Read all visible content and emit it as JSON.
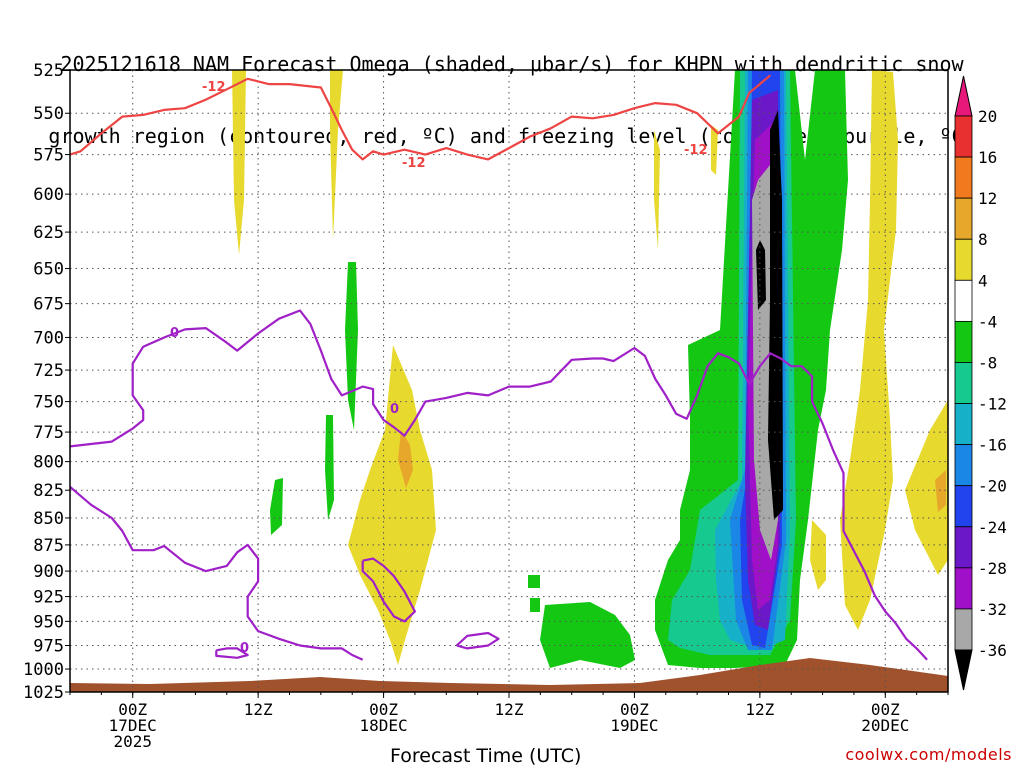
{
  "chart_data": {
    "type": "time-height cross section",
    "title_line1": "2025121618 NAM Forecast Omega (shaded, μbar/s) for KHPN with dendritic snow",
    "title_line2": "growth region (contoured, red, ºC) and freezing level (contoured, purple, ºC)",
    "xlabel": "Forecast Time (UTC)",
    "credit": "coolwx.com/models",
    "y_axis": {
      "scale": "pressure (log-like), inverted",
      "range_hPa": [
        1025,
        525
      ],
      "tick_labels": [
        "525",
        "550",
        "575",
        "600",
        "625",
        "650",
        "675",
        "700",
        "725",
        "750",
        "775",
        "800",
        "825",
        "850",
        "875",
        "900",
        "925",
        "950",
        "975",
        "1000",
        "1025"
      ],
      "grid": "dotted"
    },
    "x_axis": {
      "range_hours_from_init": [
        0,
        84
      ],
      "ticks": [
        {
          "hour": 6,
          "lines": [
            "00Z",
            "17DEC",
            "2025"
          ]
        },
        {
          "hour": 18,
          "lines": [
            "12Z"
          ]
        },
        {
          "hour": 30,
          "lines": [
            "00Z",
            "18DEC"
          ]
        },
        {
          "hour": 42,
          "lines": [
            "12Z"
          ]
        },
        {
          "hour": 54,
          "lines": [
            "00Z",
            "19DEC"
          ]
        },
        {
          "hour": 66,
          "lines": [
            "12Z"
          ]
        },
        {
          "hour": 78,
          "lines": [
            "00Z",
            "20DEC"
          ]
        }
      ],
      "grid": "dotted"
    },
    "colorbar": {
      "labels": [
        "20",
        "16",
        "12",
        "8",
        "4",
        "-4",
        "-8",
        "-12",
        "-16",
        "-20",
        "-24",
        "-28",
        "-32",
        "-36"
      ],
      "bins": [
        {
          "color": "#e8187a"
        },
        {
          "color": "#e83030"
        },
        {
          "color": "#f27a1e"
        },
        {
          "color": "#e6a72a"
        },
        {
          "color": "#e8d92f"
        },
        {
          "color": "#ffffff"
        },
        {
          "color": "#13c713"
        },
        {
          "color": "#16c98f"
        },
        {
          "color": "#16b0c8"
        },
        {
          "color": "#1a86e6"
        },
        {
          "color": "#2244ee"
        },
        {
          "color": "#6a18c8"
        },
        {
          "color": "#a010c8"
        },
        {
          "color": "#a8a8a8"
        },
        {
          "color": "#000000"
        }
      ]
    },
    "contour_labels": {
      "dgz_isotherm": "-12",
      "freezing_level": "0"
    },
    "series": [
      {
        "name": "-12",
        "color": "#ee4444",
        "points": [
          [
            0,
            575
          ],
          [
            1,
            573
          ],
          [
            3,
            562
          ],
          [
            5,
            552
          ],
          [
            7,
            551
          ],
          [
            9,
            548
          ],
          [
            11,
            547
          ],
          [
            13,
            542
          ],
          [
            15,
            536
          ],
          [
            17,
            530
          ],
          [
            19,
            533
          ],
          [
            21,
            533
          ],
          [
            24,
            535
          ],
          [
            25,
            547
          ],
          [
            26,
            560
          ],
          [
            27,
            572
          ],
          [
            28,
            578
          ],
          [
            29,
            573
          ],
          [
            30,
            575
          ],
          [
            32,
            572
          ],
          [
            34,
            575
          ],
          [
            36,
            571
          ],
          [
            38,
            575
          ],
          [
            40,
            578
          ],
          [
            42,
            571
          ],
          [
            44,
            564
          ],
          [
            46,
            559
          ],
          [
            48,
            552
          ],
          [
            50,
            553
          ],
          [
            52,
            551
          ],
          [
            54,
            547
          ],
          [
            56,
            544
          ],
          [
            58,
            545
          ],
          [
            60,
            550
          ],
          [
            62,
            562
          ],
          [
            64,
            552
          ],
          [
            65,
            538
          ],
          [
            66,
            533
          ],
          [
            67,
            528
          ]
        ]
      },
      {
        "name": "0",
        "color": "#a020c8",
        "points": [
          [
            0,
            787
          ],
          [
            4,
            783
          ],
          [
            6,
            772
          ],
          [
            7,
            765
          ],
          [
            7,
            757
          ],
          [
            6,
            745
          ],
          [
            6,
            720
          ],
          [
            7,
            707
          ],
          [
            9,
            700
          ],
          [
            11,
            694
          ],
          [
            13,
            693
          ],
          [
            15,
            704
          ],
          [
            16,
            710
          ],
          [
            18,
            697
          ],
          [
            20,
            686
          ],
          [
            22,
            680
          ],
          [
            23,
            690
          ],
          [
            24,
            710
          ],
          [
            25,
            732
          ],
          [
            26,
            745
          ],
          [
            28,
            738
          ],
          [
            29,
            740
          ],
          [
            29,
            752
          ],
          [
            30,
            765
          ],
          [
            31,
            771
          ],
          [
            32,
            778
          ],
          [
            33,
            765
          ],
          [
            34,
            750
          ],
          [
            36,
            747
          ],
          [
            38,
            743
          ],
          [
            40,
            745
          ],
          [
            42,
            738
          ],
          [
            44,
            738
          ],
          [
            46,
            734
          ],
          [
            48,
            717
          ],
          [
            50,
            716
          ],
          [
            51,
            716
          ],
          [
            52,
            718
          ],
          [
            54,
            708
          ],
          [
            55,
            714
          ],
          [
            56,
            732
          ],
          [
            57,
            745
          ],
          [
            58,
            760
          ],
          [
            59,
            764
          ],
          [
            60,
            745
          ],
          [
            61,
            722
          ],
          [
            62,
            712
          ],
          [
            63,
            715
          ],
          [
            64,
            720
          ],
          [
            65,
            736
          ],
          [
            66,
            722
          ],
          [
            67,
            712
          ],
          [
            68,
            716
          ],
          [
            69,
            722
          ],
          [
            70,
            722
          ],
          [
            71,
            730
          ],
          [
            71,
            750
          ],
          [
            72,
            768
          ],
          [
            73,
            790
          ],
          [
            74,
            810
          ],
          [
            74,
            830
          ],
          [
            74,
            862
          ],
          [
            76,
            900
          ],
          [
            77,
            924
          ],
          [
            78,
            940
          ],
          [
            79,
            952
          ],
          [
            80,
            968
          ],
          [
            81,
            978
          ],
          [
            82,
            990
          ]
        ]
      },
      {
        "name": "0",
        "color": "#a020c8",
        "points": [
          [
            0,
            822
          ],
          [
            2,
            838
          ],
          [
            4,
            850
          ],
          [
            5,
            862
          ],
          [
            6,
            880
          ],
          [
            8,
            880
          ],
          [
            9,
            876
          ],
          [
            11,
            892
          ],
          [
            13,
            900
          ],
          [
            15,
            895
          ],
          [
            16,
            882
          ],
          [
            17,
            875
          ],
          [
            18,
            888
          ],
          [
            18,
            910
          ],
          [
            17,
            925
          ],
          [
            17,
            945
          ],
          [
            18,
            960
          ],
          [
            20,
            968
          ],
          [
            22,
            975
          ],
          [
            24,
            978
          ],
          [
            26,
            978
          ],
          [
            27,
            985
          ],
          [
            28,
            990
          ]
        ]
      },
      {
        "name": "0",
        "color": "#a020c8",
        "points": [
          [
            14,
            980
          ],
          [
            15,
            978
          ],
          [
            16,
            978
          ],
          [
            17,
            985
          ],
          [
            16,
            988
          ],
          [
            14,
            986
          ],
          [
            14,
            980
          ]
        ]
      },
      {
        "name": "0",
        "color": "#a020c8",
        "points": [
          [
            28,
            890
          ],
          [
            29,
            888
          ],
          [
            30,
            895
          ],
          [
            31,
            905
          ],
          [
            32,
            920
          ],
          [
            33,
            940
          ],
          [
            32,
            950
          ],
          [
            31,
            945
          ],
          [
            30,
            930
          ],
          [
            29,
            910
          ],
          [
            28,
            900
          ],
          [
            28,
            890
          ]
        ]
      },
      {
        "name": "0",
        "color": "#a020c8",
        "points": [
          [
            37,
            975
          ],
          [
            38,
            965
          ],
          [
            40,
            962
          ],
          [
            41,
            968
          ],
          [
            40,
            975
          ],
          [
            38,
            978
          ],
          [
            37,
            975
          ]
        ]
      }
    ]
  }
}
